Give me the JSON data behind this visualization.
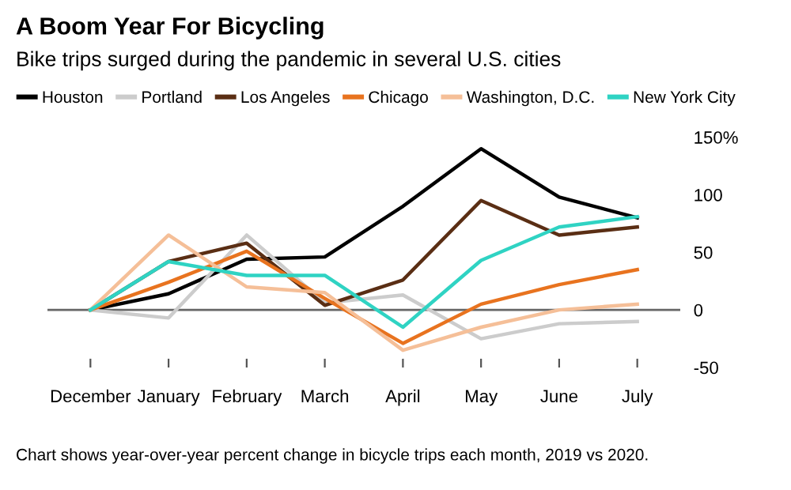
{
  "chart_data": {
    "type": "line",
    "title": "A Boom Year For Bicycling",
    "subtitle": "Bike trips surged during the pandemic in several U.S. cities",
    "categories": [
      "December",
      "January",
      "February",
      "March",
      "April",
      "May",
      "June",
      "July"
    ],
    "series": [
      {
        "name": "Houston",
        "color": "#000000",
        "values": [
          0,
          14,
          44,
          46,
          90,
          140,
          98,
          80
        ]
      },
      {
        "name": "Portland",
        "color": "#cccccc",
        "values": [
          0,
          -7,
          65,
          6,
          13,
          -25,
          -12,
          -10
        ]
      },
      {
        "name": "Los Angeles",
        "color": "#5a2e14",
        "values": [
          0,
          42,
          58,
          4,
          26,
          95,
          65,
          72
        ]
      },
      {
        "name": "Chicago",
        "color": "#e8731f",
        "values": [
          0,
          24,
          51,
          10,
          -29,
          5,
          22,
          35
        ]
      },
      {
        "name": "Washington, D.C.",
        "color": "#f5bf98",
        "values": [
          0,
          65,
          20,
          15,
          -35,
          -15,
          0,
          5
        ]
      },
      {
        "name": "New York City",
        "color": "#2fd3c3",
        "values": [
          0,
          42,
          30,
          30,
          -15,
          43,
          72,
          81
        ]
      }
    ],
    "ylim": [
      -50,
      150
    ],
    "yticks": [
      -50,
      0,
      50,
      100,
      {
        "value": 150,
        "label": "150%"
      }
    ],
    "ref_lines": [
      {
        "axis": "y",
        "value": 0,
        "color": "#666666"
      }
    ],
    "grid": false,
    "legend": "top left",
    "marker": "none",
    "line_style": "solid",
    "annotations": [
      "Chart shows year-over-year percent change in bicycle trips each month, 2019 vs 2020."
    ]
  }
}
